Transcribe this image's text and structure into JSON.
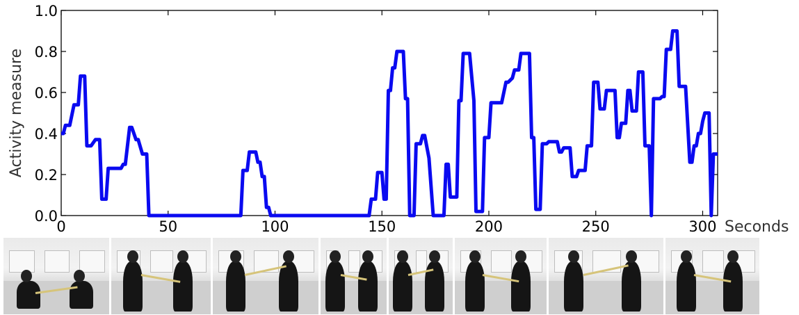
{
  "chart_data": {
    "type": "line",
    "title": "",
    "xlabel": "Seconds",
    "ylabel": "Activity measure",
    "xlim": [
      0,
      307
    ],
    "ylim": [
      0.0,
      1.0
    ],
    "xticks": [
      "0",
      "50",
      "100",
      "150",
      "200",
      "250",
      "300"
    ],
    "yticks": [
      "0.0",
      "0.2",
      "0.4",
      "0.6",
      "0.8",
      "1.0"
    ],
    "grid": false,
    "line_color": "#0a0af0",
    "series": [
      {
        "x": [
          0,
          1,
          2,
          4,
          6,
          8,
          9,
          11,
          12,
          14,
          16,
          17,
          18,
          19,
          20,
          21,
          22,
          23,
          26,
          28,
          29,
          30,
          32,
          33,
          35,
          36,
          38,
          39,
          40,
          41,
          84,
          85,
          87,
          88,
          90,
          91,
          92,
          93,
          94,
          95,
          96,
          97,
          98,
          99,
          144,
          145,
          147,
          148,
          150,
          151,
          152,
          153,
          154,
          155,
          156,
          157,
          158,
          160,
          161,
          162,
          163,
          164,
          165,
          166,
          167,
          168,
          169,
          170,
          172,
          174,
          175,
          176,
          177,
          178,
          179,
          180,
          181,
          182,
          184,
          185,
          186,
          187,
          188,
          189,
          190,
          191,
          193,
          194,
          195,
          196,
          197,
          198,
          199,
          200,
          201,
          202,
          203,
          204,
          205,
          206,
          208,
          209,
          211,
          212,
          213,
          214,
          215,
          216,
          217,
          218,
          219,
          220,
          221,
          222,
          223,
          224,
          225,
          226,
          227,
          228,
          229,
          230,
          232,
          233,
          234,
          235,
          236,
          237,
          238,
          239,
          240,
          241,
          242,
          243,
          245,
          246,
          247,
          248,
          249,
          250,
          251,
          252,
          253,
          254,
          255,
          256,
          257,
          258,
          259,
          260,
          261,
          262,
          263,
          264,
          265,
          266,
          267,
          268,
          269,
          270,
          271,
          272,
          273,
          274,
          275,
          276,
          277,
          278,
          280,
          281,
          282,
          283,
          285,
          286,
          287,
          288,
          289,
          291,
          292,
          294,
          295,
          296,
          297,
          298,
          299,
          300,
          301,
          303,
          304,
          305,
          306,
          307
        ],
        "y": [
          0.4,
          0.4,
          0.44,
          0.44,
          0.54,
          0.54,
          0.68,
          0.68,
          0.34,
          0.34,
          0.37,
          0.37,
          0.37,
          0.08,
          0.08,
          0.08,
          0.23,
          0.23,
          0.23,
          0.23,
          0.25,
          0.25,
          0.43,
          0.43,
          0.37,
          0.37,
          0.3,
          0.3,
          0.3,
          0.0,
          0.0,
          0.22,
          0.22,
          0.31,
          0.31,
          0.31,
          0.26,
          0.26,
          0.19,
          0.19,
          0.04,
          0.04,
          0.0,
          0.0,
          0.0,
          0.08,
          0.08,
          0.21,
          0.21,
          0.08,
          0.08,
          0.61,
          0.61,
          0.72,
          0.72,
          0.8,
          0.8,
          0.8,
          0.57,
          0.57,
          0.0,
          0.0,
          0.0,
          0.35,
          0.35,
          0.35,
          0.39,
          0.39,
          0.28,
          0.0,
          0.0,
          0.0,
          0.0,
          0.0,
          0.0,
          0.25,
          0.25,
          0.09,
          0.09,
          0.09,
          0.56,
          0.56,
          0.79,
          0.79,
          0.79,
          0.79,
          0.56,
          0.02,
          0.02,
          0.02,
          0.02,
          0.38,
          0.38,
          0.38,
          0.55,
          0.55,
          0.55,
          0.55,
          0.55,
          0.55,
          0.65,
          0.65,
          0.67,
          0.71,
          0.71,
          0.71,
          0.79,
          0.79,
          0.79,
          0.79,
          0.79,
          0.38,
          0.38,
          0.03,
          0.03,
          0.03,
          0.35,
          0.35,
          0.35,
          0.36,
          0.36,
          0.36,
          0.36,
          0.31,
          0.31,
          0.33,
          0.33,
          0.33,
          0.33,
          0.19,
          0.19,
          0.19,
          0.22,
          0.22,
          0.22,
          0.34,
          0.34,
          0.34,
          0.65,
          0.65,
          0.65,
          0.52,
          0.52,
          0.52,
          0.61,
          0.61,
          0.61,
          0.61,
          0.61,
          0.38,
          0.38,
          0.45,
          0.45,
          0.45,
          0.61,
          0.61,
          0.51,
          0.51,
          0.51,
          0.7,
          0.7,
          0.7,
          0.34,
          0.34,
          0.34,
          0.0,
          0.57,
          0.57,
          0.57,
          0.58,
          0.58,
          0.81,
          0.81,
          0.9,
          0.9,
          0.9,
          0.63,
          0.63,
          0.63,
          0.26,
          0.26,
          0.34,
          0.34,
          0.4,
          0.4,
          0.46,
          0.5,
          0.5,
          0.0,
          0.3,
          0.3,
          0.3
        ]
      }
    ]
  },
  "frames": [
    {
      "name": "frame-1"
    },
    {
      "name": "frame-2"
    },
    {
      "name": "frame-3"
    },
    {
      "name": "frame-4"
    },
    {
      "name": "frame-5"
    },
    {
      "name": "frame-6"
    },
    {
      "name": "frame-7"
    },
    {
      "name": "frame-8"
    }
  ]
}
